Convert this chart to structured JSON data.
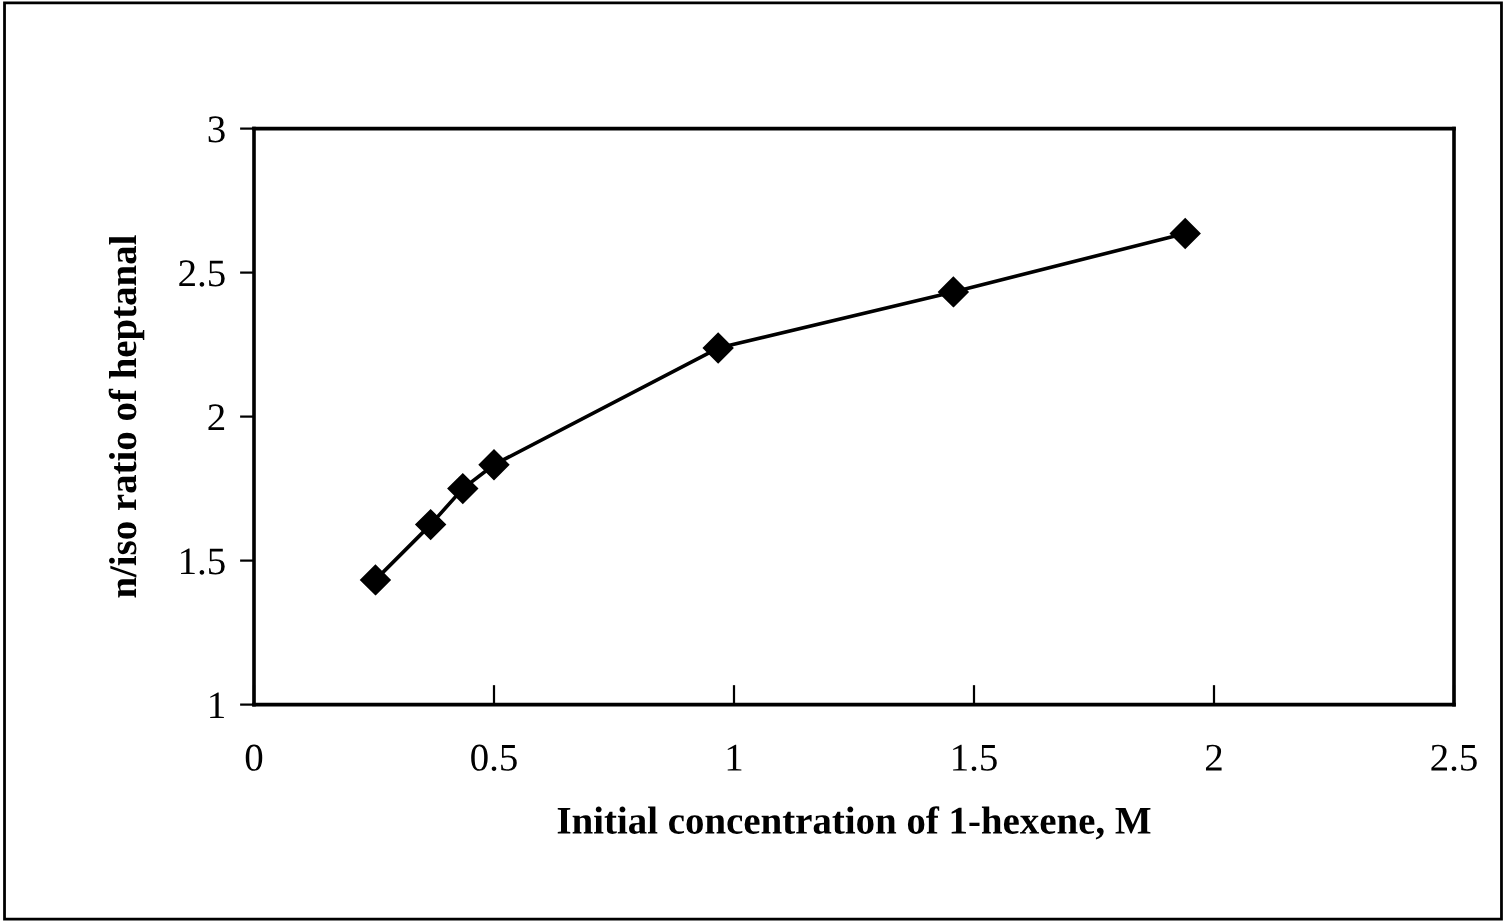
{
  "chart_data": {
    "type": "line",
    "xlabel": "Initial concentration of 1-hexene, M",
    "ylabel": "n/iso ratio of heptanal",
    "x": [
      0.253,
      0.368,
      0.435,
      0.5,
      0.967,
      1.457,
      1.94
    ],
    "series": [
      {
        "color": "#000000",
        "values": [
          1.433,
          1.625,
          1.75,
          1.833,
          2.238,
          2.433,
          2.636
        ]
      }
    ],
    "xlim": [
      0,
      2.5
    ],
    "xticks": [
      0,
      0.5,
      1,
      1.5,
      2,
      2.5
    ],
    "ylim": [
      1,
      3
    ],
    "yticks": [
      1,
      1.5,
      2,
      2.5,
      3
    ],
    "marker": "diamond",
    "line_style": "solid",
    "grid": false,
    "legend": false
  }
}
